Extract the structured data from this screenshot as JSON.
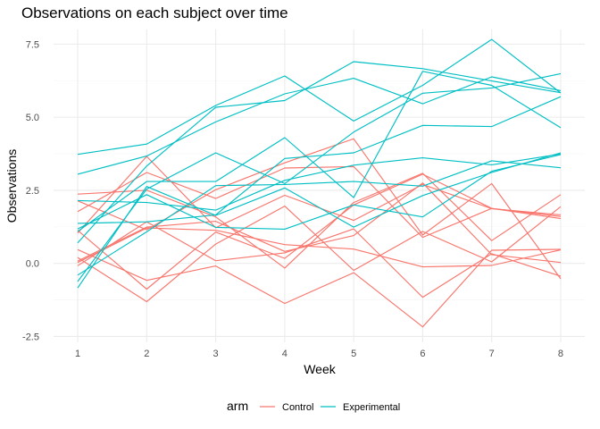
{
  "chart_data": {
    "type": "line",
    "title": "Observations on each subject over time",
    "xlabel": "Week",
    "ylabel": "Observations",
    "x": [
      1,
      2,
      3,
      4,
      5,
      6,
      7,
      8
    ],
    "xlim": [
      0.65,
      8.35
    ],
    "ylim": [
      -2.7,
      8.0
    ],
    "x_ticks": [
      1,
      2,
      3,
      4,
      5,
      6,
      7,
      8
    ],
    "y_ticks": [
      -2.5,
      0.0,
      2.5,
      5.0,
      7.5
    ],
    "y_tick_labels": [
      "-2.5",
      "0.0",
      "2.5",
      "5.0",
      "7.5"
    ],
    "grid": true,
    "legend": {
      "title": "arm",
      "position": "bottom",
      "entries": [
        {
          "label": "Control",
          "color": "#F8766D"
        },
        {
          "label": "Experimental",
          "color": "#00BFC4"
        }
      ]
    },
    "series": [
      {
        "group": "Control",
        "color": "#F8766D",
        "values": [
          0.2,
          -1.31,
          0.66,
          1.96,
          -0.24,
          1.09,
          0.05,
          1.94
        ]
      },
      {
        "group": "Control",
        "color": "#F8766D",
        "values": [
          1.13,
          -0.88,
          1.07,
          0.17,
          2.0,
          3.05,
          1.88,
          1.53
        ]
      },
      {
        "group": "Control",
        "color": "#F8766D",
        "values": [
          1.77,
          3.11,
          2.22,
          3.26,
          3.31,
          0.89,
          1.88,
          1.6
        ]
      },
      {
        "group": "Control",
        "color": "#F8766D",
        "values": [
          1.04,
          3.66,
          1.22,
          2.33,
          1.47,
          2.7,
          1.87,
          1.66
        ]
      },
      {
        "group": "Control",
        "color": "#F8766D",
        "values": [
          0.47,
          -0.58,
          -0.09,
          -1.37,
          -0.32,
          -2.17,
          0.45,
          0.48
        ]
      },
      {
        "group": "Control",
        "color": "#F8766D",
        "values": [
          2.37,
          2.5,
          1.59,
          -0.16,
          2.08,
          3.08,
          0.78,
          2.35
        ]
      },
      {
        "group": "Control",
        "color": "#F8766D",
        "values": [
          0.03,
          1.21,
          1.13,
          0.64,
          0.49,
          -0.12,
          -0.07,
          0.46
        ]
      },
      {
        "group": "Control",
        "color": "#F8766D",
        "values": [
          -0.08,
          1.42,
          0.09,
          0.36,
          1.18,
          -1.16,
          0.33,
          -0.44
        ]
      },
      {
        "group": "Control",
        "color": "#F8766D",
        "values": [
          0.08,
          1.24,
          1.44,
          0.41,
          0.95,
          2.75,
          0.3,
          0.03
        ]
      },
      {
        "group": "Control",
        "color": "#F8766D",
        "values": [
          2.14,
          1.15,
          2.52,
          3.44,
          4.26,
          0.97,
          2.73,
          -0.53
        ]
      },
      {
        "group": "Experimental",
        "color": "#00BFC4",
        "values": [
          3.05,
          3.67,
          4.84,
          5.8,
          6.33,
          5.46,
          6.38,
          5.91
        ]
      },
      {
        "group": "Experimental",
        "color": "#00BFC4",
        "values": [
          -0.84,
          2.63,
          1.64,
          2.58,
          1.24,
          2.32,
          3.11,
          3.78
        ]
      },
      {
        "group": "Experimental",
        "color": "#00BFC4",
        "values": [
          2.15,
          2.08,
          1.82,
          2.84,
          3.36,
          3.61,
          3.37,
          3.74
        ]
      },
      {
        "group": "Experimental",
        "color": "#00BFC4",
        "values": [
          -0.62,
          2.54,
          3.78,
          2.73,
          4.49,
          5.82,
          6.0,
          6.49
        ]
      },
      {
        "group": "Experimental",
        "color": "#00BFC4",
        "values": [
          0.7,
          3.33,
          5.34,
          5.57,
          6.9,
          6.66,
          6.24,
          5.84
        ]
      },
      {
        "group": "Experimental",
        "color": "#00BFC4",
        "values": [
          3.73,
          4.08,
          5.4,
          6.41,
          4.87,
          6.09,
          7.66,
          5.83
        ]
      },
      {
        "group": "Experimental",
        "color": "#00BFC4",
        "values": [
          1.18,
          2.35,
          1.23,
          1.17,
          2.0,
          1.59,
          3.15,
          3.72
        ]
      },
      {
        "group": "Experimental",
        "color": "#00BFC4",
        "values": [
          1.37,
          1.42,
          1.66,
          3.59,
          3.78,
          4.72,
          4.68,
          5.7
        ]
      },
      {
        "group": "Experimental",
        "color": "#00BFC4",
        "values": [
          -0.4,
          1.08,
          2.66,
          2.7,
          2.8,
          2.64,
          3.51,
          3.27
        ]
      },
      {
        "group": "Experimental",
        "color": "#00BFC4",
        "values": [
          1.09,
          2.8,
          2.8,
          4.3,
          2.25,
          6.57,
          6.09,
          4.64
        ]
      }
    ]
  }
}
